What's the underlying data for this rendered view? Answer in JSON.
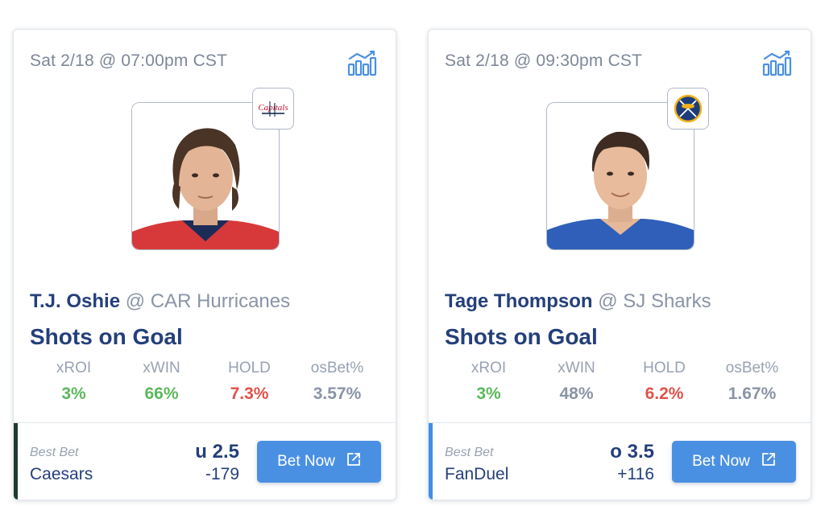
{
  "cards": [
    {
      "datetime": "Sat 2/18 @ 07:00pm CST",
      "team_logo": "capitals-logo",
      "player_name": "T.J. Oshie",
      "opponent": "@ CAR Hurricanes",
      "market": "Shots on Goal",
      "stats": [
        {
          "label": "xROI",
          "value": "3%",
          "color": "#5cb85c"
        },
        {
          "label": "xWIN",
          "value": "66%",
          "color": "#5cb85c"
        },
        {
          "label": "HOLD",
          "value": "7.3%",
          "color": "#e0524a"
        },
        {
          "label": "osBet%",
          "value": "3.57%",
          "color": "#8a94a6"
        }
      ],
      "best_bet_label": "Best Bet",
      "sportsbook": "Caesars",
      "line": "u 2.5",
      "odds": "-179",
      "button_label": "Bet Now",
      "accent_color": "#1f3a2e",
      "jersey_color": "#d7393b"
    },
    {
      "datetime": "Sat 2/18 @ 09:30pm CST",
      "team_logo": "sabres-logo",
      "player_name": "Tage Thompson",
      "opponent": "@ SJ Sharks",
      "market": "Shots on Goal",
      "stats": [
        {
          "label": "xROI",
          "value": "3%",
          "color": "#5cb85c"
        },
        {
          "label": "xWIN",
          "value": "48%",
          "color": "#8a94a6"
        },
        {
          "label": "HOLD",
          "value": "6.2%",
          "color": "#e0524a"
        },
        {
          "label": "osBet%",
          "value": "1.67%",
          "color": "#8a94a6"
        }
      ],
      "best_bet_label": "Best Bet",
      "sportsbook": "FanDuel",
      "line": "o 3.5",
      "odds": "+116",
      "button_label": "Bet Now",
      "accent_color": "#3f8fe8",
      "jersey_color": "#2f5fb8"
    }
  ],
  "icons": {
    "chart": "bar-chart-trend-icon",
    "external": "external-link-icon"
  }
}
